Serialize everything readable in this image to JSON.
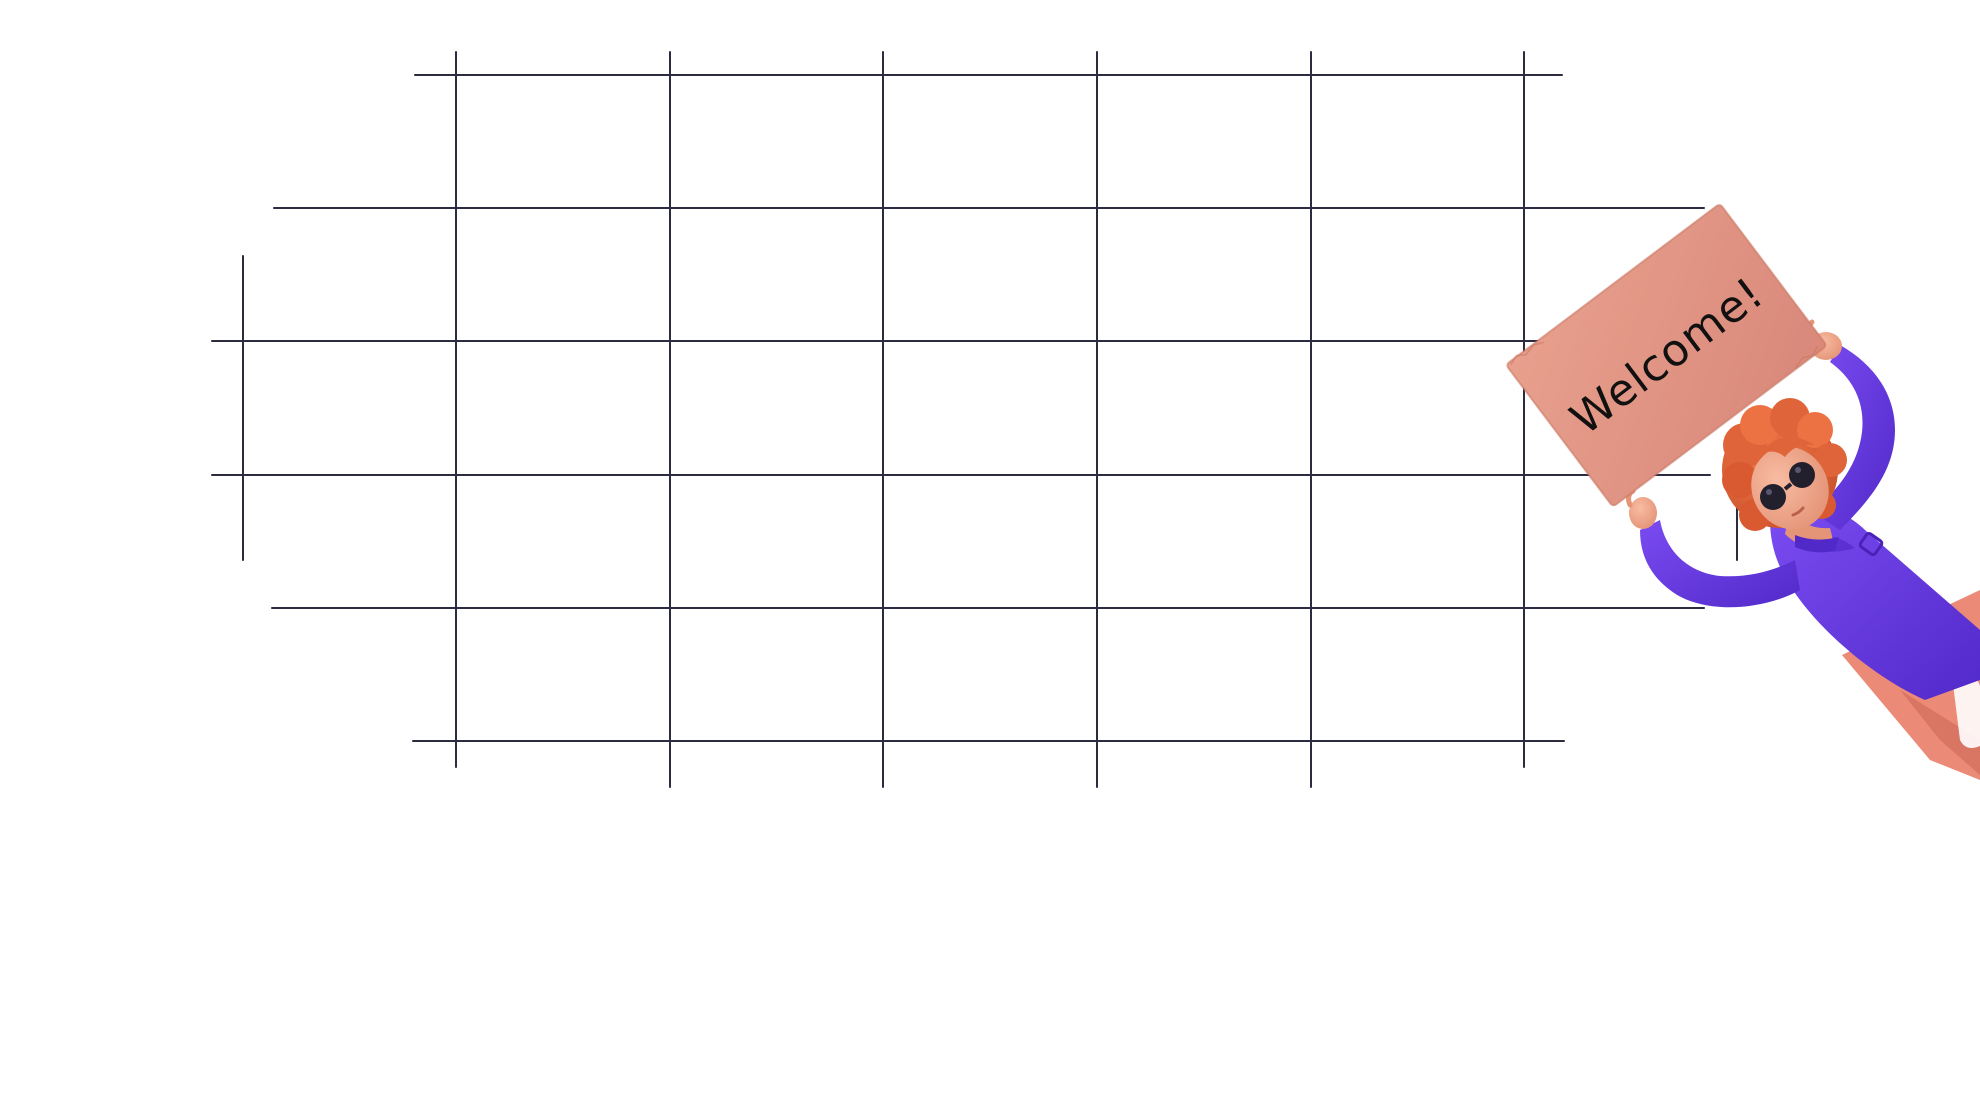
{
  "sign": {
    "text": "Welcome!"
  },
  "illustration": {
    "subject": "character-holding-welcome-sign",
    "colors": {
      "grid_line": "#2b2c3f",
      "background": "#ffffff",
      "sign": "#e29785",
      "sign_shade": "#c97864",
      "shirt": "#6a3de8",
      "shirt_shade": "#5229c9",
      "skin": "#f1a98c",
      "hair": "#e0643a",
      "pants": "#ec8a78",
      "glasses": "#23202e"
    }
  }
}
